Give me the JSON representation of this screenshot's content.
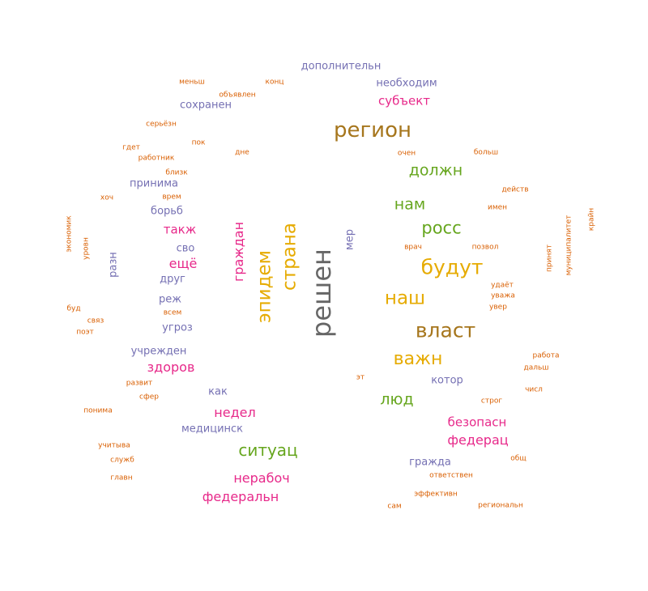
{
  "words": [
    {
      "text": "дополнительн",
      "color": "#7570b3"
    },
    {
      "text": "меньш",
      "color": "#d95f02"
    },
    {
      "text": "конц",
      "color": "#d95f02"
    },
    {
      "text": "необходим",
      "color": "#7570b3"
    },
    {
      "text": "объявлен",
      "color": "#d95f02"
    },
    {
      "text": "субъект",
      "color": "#e7298a"
    },
    {
      "text": "сохранен",
      "color": "#7570b3"
    },
    {
      "text": "серьёзн",
      "color": "#d95f02"
    },
    {
      "text": "регион",
      "color": "#a6761d"
    },
    {
      "text": "пок",
      "color": "#d95f02"
    },
    {
      "text": "гдет",
      "color": "#d95f02"
    },
    {
      "text": "дне",
      "color": "#d95f02"
    },
    {
      "text": "очен",
      "color": "#d95f02"
    },
    {
      "text": "больш",
      "color": "#d95f02"
    },
    {
      "text": "работник",
      "color": "#d95f02"
    },
    {
      "text": "должн",
      "color": "#66a61e"
    },
    {
      "text": "близк",
      "color": "#d95f02"
    },
    {
      "text": "принима",
      "color": "#7570b3"
    },
    {
      "text": "действ",
      "color": "#d95f02"
    },
    {
      "text": "хоч",
      "color": "#d95f02"
    },
    {
      "text": "врем",
      "color": "#d95f02"
    },
    {
      "text": "нам",
      "color": "#66a61e"
    },
    {
      "text": "имен",
      "color": "#d95f02"
    },
    {
      "text": "борьб",
      "color": "#7570b3"
    },
    {
      "text": "крайн",
      "color": "#d95f02"
    },
    {
      "text": "экономик",
      "color": "#d95f02"
    },
    {
      "text": "муниципалитет",
      "color": "#d95f02"
    },
    {
      "text": "росс",
      "color": "#66a61e"
    },
    {
      "text": "такж",
      "color": "#e7298a"
    },
    {
      "text": "граждан",
      "color": "#e7298a"
    },
    {
      "text": "мер",
      "color": "#7570b3"
    },
    {
      "text": "уровн",
      "color": "#d95f02"
    },
    {
      "text": "страна",
      "color": "#e6ab02"
    },
    {
      "text": "сво",
      "color": "#7570b3"
    },
    {
      "text": "врач",
      "color": "#d95f02"
    },
    {
      "text": "позвол",
      "color": "#d95f02"
    },
    {
      "text": "принят",
      "color": "#d95f02"
    },
    {
      "text": "разн",
      "color": "#7570b3"
    },
    {
      "text": "эпидем",
      "color": "#e6ab02"
    },
    {
      "text": "решен",
      "color": "#666666"
    },
    {
      "text": "будут",
      "color": "#e6ab02"
    },
    {
      "text": "ещё",
      "color": "#e7298a"
    },
    {
      "text": "друг",
      "color": "#7570b3"
    },
    {
      "text": "удаёт",
      "color": "#d95f02"
    },
    {
      "text": "уважа",
      "color": "#d95f02"
    },
    {
      "text": "наш",
      "color": "#e6ab02"
    },
    {
      "text": "реж",
      "color": "#7570b3"
    },
    {
      "text": "буд",
      "color": "#d95f02"
    },
    {
      "text": "всем",
      "color": "#d95f02"
    },
    {
      "text": "увер",
      "color": "#d95f02"
    },
    {
      "text": "связ",
      "color": "#d95f02"
    },
    {
      "text": "угроз",
      "color": "#7570b3"
    },
    {
      "text": "поэт",
      "color": "#d95f02"
    },
    {
      "text": "власт",
      "color": "#a6761d"
    },
    {
      "text": "учрежден",
      "color": "#7570b3"
    },
    {
      "text": "работа",
      "color": "#d95f02"
    },
    {
      "text": "важн",
      "color": "#e6ab02"
    },
    {
      "text": "здоров",
      "color": "#e7298a"
    },
    {
      "text": "дальш",
      "color": "#d95f02"
    },
    {
      "text": "эт",
      "color": "#d95f02"
    },
    {
      "text": "котор",
      "color": "#7570b3"
    },
    {
      "text": "развит",
      "color": "#d95f02"
    },
    {
      "text": "как",
      "color": "#7570b3"
    },
    {
      "text": "числ",
      "color": "#d95f02"
    },
    {
      "text": "сфер",
      "color": "#d95f02"
    },
    {
      "text": "люд",
      "color": "#66a61e"
    },
    {
      "text": "строг",
      "color": "#d95f02"
    },
    {
      "text": "понима",
      "color": "#d95f02"
    },
    {
      "text": "недел",
      "color": "#e7298a"
    },
    {
      "text": "безопасн",
      "color": "#e7298a"
    },
    {
      "text": "медицинск",
      "color": "#7570b3"
    },
    {
      "text": "федерац",
      "color": "#e7298a"
    },
    {
      "text": "учитыва",
      "color": "#d95f02"
    },
    {
      "text": "ситуац",
      "color": "#66a61e"
    },
    {
      "text": "служб",
      "color": "#d95f02"
    },
    {
      "text": "гражда",
      "color": "#7570b3"
    },
    {
      "text": "общ",
      "color": "#d95f02"
    },
    {
      "text": "ответствен",
      "color": "#d95f02"
    },
    {
      "text": "главн",
      "color": "#d95f02"
    },
    {
      "text": "нерабоч",
      "color": "#e7298a"
    },
    {
      "text": "эффективн",
      "color": "#d95f02"
    },
    {
      "text": "федеральн",
      "color": "#e7298a"
    },
    {
      "text": "сам",
      "color": "#d95f02"
    },
    {
      "text": "региональн",
      "color": "#d95f02"
    }
  ]
}
